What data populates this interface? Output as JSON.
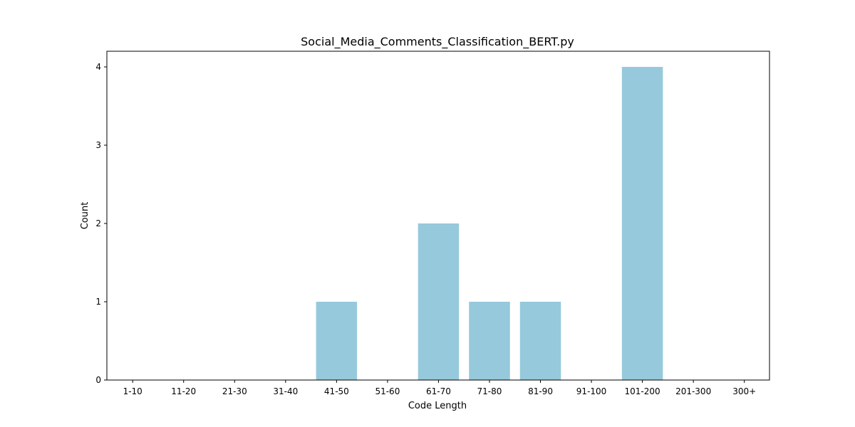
{
  "chart_data": {
    "type": "bar",
    "title": "Social_Media_Comments_Classification_BERT.py",
    "xlabel": "Code Length",
    "ylabel": "Count",
    "categories": [
      "1-10",
      "11-20",
      "21-30",
      "31-40",
      "41-50",
      "51-60",
      "61-70",
      "71-80",
      "81-90",
      "91-100",
      "101-200",
      "201-300",
      "300+"
    ],
    "values": [
      0,
      0,
      0,
      0,
      1,
      0,
      2,
      1,
      1,
      0,
      4,
      0,
      0
    ],
    "yticks": [
      0,
      1,
      2,
      3,
      4
    ],
    "ylim": [
      0,
      4.2
    ],
    "grid": false,
    "bar_color": "#96c9dc"
  }
}
